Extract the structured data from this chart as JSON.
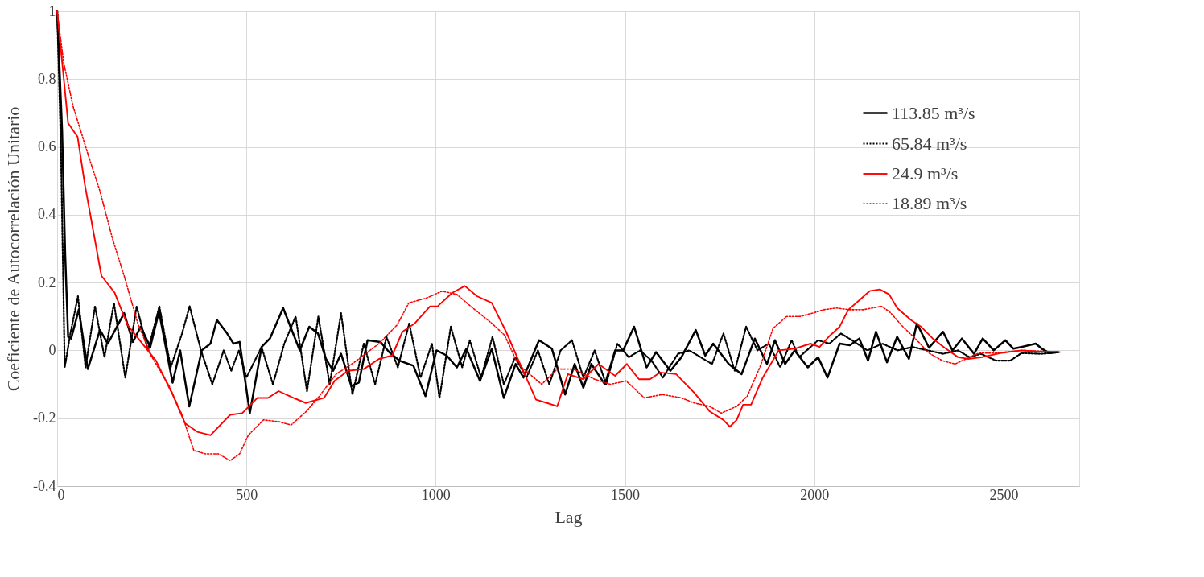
{
  "chart_data": {
    "type": "line",
    "xlabel": "Lag",
    "ylabel": "Coeficiente de Autocorrelación Unitario",
    "xlim": [
      0,
      2700
    ],
    "xticks": [
      0,
      500,
      1000,
      1500,
      2000,
      2500
    ],
    "ylim": [
      -0.4,
      1
    ],
    "yticks": [
      -0.4,
      -0.2,
      0,
      0.2,
      0.4,
      0.6,
      0.8,
      1
    ],
    "grid": true,
    "legend": "top right",
    "marker": "none",
    "series": [
      {
        "name": "113.85 m³/s",
        "color": "#000000",
        "line_style": "solid",
        "x": [
          0,
          13,
          21,
          29,
          37,
          57,
          81,
          113,
          134,
          177,
          200,
          221,
          246,
          269,
          305,
          325,
          349,
          382,
          405,
          422,
          449,
          466,
          482,
          509,
          540,
          562,
          597,
          618,
          641,
          666,
          689,
          710,
          729,
          750,
          777,
          797,
          820,
          854,
          877,
          904,
          941,
          973,
          1002,
          1029,
          1056,
          1081,
          1117,
          1148,
          1180,
          1211,
          1232,
          1273,
          1307,
          1342,
          1367,
          1390,
          1411,
          1447,
          1474,
          1495,
          1524,
          1557,
          1582,
          1620,
          1649,
          1687,
          1712,
          1733,
          1774,
          1808,
          1843,
          1875,
          1896,
          1923,
          1948,
          1983,
          2010,
          2035,
          2067,
          2094,
          2119,
          2142,
          2163,
          2192,
          2219,
          2250,
          2271,
          2303,
          2340,
          2365,
          2390,
          2422,
          2445,
          2474,
          2505,
          2526,
          2547,
          2585,
          2601,
          2622,
          2643
        ],
        "values": [
          1,
          0.65,
          0.29,
          0.04,
          0.035,
          0.12,
          -0.055,
          0.06,
          0.02,
          0.11,
          0.025,
          0.07,
          0.01,
          0.115,
          -0.095,
          0.0,
          -0.165,
          0.0,
          0.02,
          0.09,
          0.05,
          0.02,
          0.025,
          -0.185,
          0.01,
          0.035,
          0.125,
          0.065,
          0.0,
          0.07,
          0.05,
          -0.025,
          -0.06,
          -0.01,
          -0.105,
          -0.095,
          0.03,
          0.025,
          -0.005,
          -0.03,
          -0.045,
          -0.135,
          0.0,
          -0.015,
          -0.05,
          0.005,
          -0.09,
          0.005,
          -0.14,
          -0.04,
          -0.08,
          0.03,
          0.005,
          -0.13,
          -0.04,
          -0.11,
          -0.04,
          -0.1,
          0.0,
          0.0,
          0.07,
          -0.05,
          -0.005,
          -0.06,
          -0.02,
          0.06,
          -0.015,
          0.02,
          -0.04,
          -0.07,
          0.035,
          -0.04,
          0.03,
          -0.04,
          0.0,
          -0.05,
          -0.02,
          -0.08,
          0.02,
          0.015,
          0.035,
          -0.03,
          0.055,
          -0.035,
          0.04,
          -0.025,
          0.08,
          0.008,
          0.055,
          0.0,
          0.035,
          -0.01,
          0.035,
          0.0,
          0.03,
          0.005,
          0.01,
          0.02,
          0.005,
          -0.008,
          -0.005
        ]
      },
      {
        "name": "65.84  m³/s",
        "color": "#000000",
        "line_style": "dotted",
        "x": [
          0,
          10,
          20,
          35,
          55,
          75,
          100,
          125,
          150,
          180,
          210,
          240,
          270,
          300,
          330,
          350,
          380,
          410,
          440,
          460,
          480,
          500,
          540,
          570,
          600,
          630,
          660,
          690,
          720,
          750,
          780,
          810,
          840,
          870,
          900,
          930,
          960,
          990,
          1010,
          1040,
          1070,
          1090,
          1120,
          1150,
          1180,
          1210,
          1240,
          1270,
          1300,
          1330,
          1360,
          1390,
          1420,
          1450,
          1480,
          1510,
          1540,
          1570,
          1600,
          1640,
          1670,
          1700,
          1730,
          1760,
          1790,
          1820,
          1850,
          1880,
          1910,
          1940,
          1960,
          1980,
          2010,
          2040,
          2070,
          2100,
          2140,
          2180,
          2220,
          2260,
          2300,
          2340,
          2380,
          2410,
          2440,
          2480,
          2518,
          2547,
          2600,
          2650
        ],
        "values": [
          1,
          0.6,
          -0.05,
          0.05,
          0.16,
          -0.05,
          0.13,
          -0.02,
          0.14,
          -0.08,
          0.13,
          0.0,
          0.13,
          -0.05,
          0.05,
          0.13,
          0.0,
          -0.1,
          0.0,
          -0.06,
          0.0,
          -0.08,
          0.01,
          -0.1,
          0.02,
          0.1,
          -0.12,
          0.1,
          -0.1,
          0.11,
          -0.13,
          0.02,
          -0.1,
          0.04,
          -0.05,
          0.08,
          -0.08,
          0.02,
          -0.14,
          0.07,
          -0.05,
          0.03,
          -0.08,
          0.04,
          -0.1,
          -0.02,
          -0.08,
          0.0,
          -0.1,
          0.0,
          0.03,
          -0.08,
          0.0,
          -0.1,
          0.02,
          -0.02,
          0.0,
          -0.03,
          -0.08,
          -0.01,
          0.0,
          -0.02,
          -0.04,
          0.05,
          -0.06,
          0.07,
          0.0,
          0.02,
          -0.05,
          0.03,
          -0.02,
          0.0,
          0.03,
          0.02,
          0.05,
          0.03,
          0.0,
          0.02,
          0.0,
          0.01,
          0.0,
          -0.01,
          0.0,
          -0.02,
          -0.01,
          -0.03,
          -0.03,
          -0.008,
          -0.01,
          -0.005
        ]
      },
      {
        "name": "24.9  m³/s",
        "color": "#ff0000",
        "line_style": "solid",
        "x": [
          0,
          29,
          54,
          73,
          117,
          152,
          186,
          261,
          305,
          338,
          370,
          405,
          457,
          489,
          529,
          557,
          585,
          624,
          657,
          705,
          733,
          768,
          810,
          850,
          885,
          912,
          945,
          985,
          1005,
          1044,
          1077,
          1109,
          1148,
          1186,
          1217,
          1265,
          1294,
          1321,
          1349,
          1390,
          1430,
          1474,
          1505,
          1537,
          1566,
          1593,
          1635,
          1683,
          1724,
          1760,
          1777,
          1795,
          1812,
          1833,
          1864,
          1906,
          1948,
          1990,
          2014,
          2038,
          2067,
          2090,
          2121,
          2146,
          2173,
          2198,
          2219,
          2255,
          2282,
          2313,
          2344,
          2380,
          2407,
          2443,
          2491,
          2547,
          2601,
          2641
        ],
        "values": [
          1,
          0.67,
          0.63,
          0.49,
          0.22,
          0.17,
          0.075,
          -0.03,
          -0.13,
          -0.215,
          -0.24,
          -0.25,
          -0.19,
          -0.185,
          -0.14,
          -0.14,
          -0.12,
          -0.14,
          -0.155,
          -0.14,
          -0.09,
          -0.06,
          -0.055,
          -0.025,
          -0.015,
          0.055,
          0.08,
          0.13,
          0.13,
          0.17,
          0.19,
          0.16,
          0.14,
          0.055,
          -0.025,
          -0.145,
          -0.155,
          -0.165,
          -0.07,
          -0.085,
          -0.04,
          -0.075,
          -0.04,
          -0.085,
          -0.085,
          -0.065,
          -0.07,
          -0.125,
          -0.18,
          -0.205,
          -0.225,
          -0.205,
          -0.16,
          -0.16,
          -0.08,
          0.0,
          0.005,
          0.02,
          0.01,
          0.04,
          0.07,
          0.12,
          0.15,
          0.175,
          0.18,
          0.165,
          0.125,
          0.09,
          0.07,
          0.035,
          0.008,
          -0.02,
          -0.025,
          -0.02,
          -0.008,
          0.0,
          -0.004,
          -0.004
        ]
      },
      {
        "name": "18.89  m³/s",
        "color": "#ff0000",
        "line_style": "dotted",
        "x": [
          0,
          17,
          42,
          81,
          113,
          146,
          177,
          213,
          248,
          296,
          330,
          361,
          392,
          426,
          457,
          482,
          505,
          545,
          585,
          618,
          658,
          689,
          737,
          785,
          850,
          898,
          929,
          977,
          1017,
          1056,
          1098,
          1148,
          1182,
          1217,
          1280,
          1321,
          1363,
          1420,
          1461,
          1503,
          1551,
          1599,
          1649,
          1683,
          1724,
          1754,
          1795,
          1823,
          1858,
          1891,
          1927,
          1962,
          1996,
          2025,
          2058,
          2094,
          2129,
          2177,
          2198,
          2234,
          2267,
          2303,
          2338,
          2372,
          2401,
          2434,
          2476,
          2550,
          2650
        ],
        "values": [
          1,
          0.85,
          0.72,
          0.58,
          0.47,
          0.33,
          0.22,
          0.08,
          -0.015,
          -0.105,
          -0.19,
          -0.295,
          -0.305,
          -0.305,
          -0.325,
          -0.305,
          -0.25,
          -0.205,
          -0.21,
          -0.22,
          -0.18,
          -0.14,
          -0.07,
          -0.035,
          0.02,
          0.075,
          0.14,
          0.155,
          0.175,
          0.165,
          0.125,
          0.08,
          0.045,
          -0.04,
          -0.1,
          -0.055,
          -0.055,
          -0.085,
          -0.1,
          -0.09,
          -0.14,
          -0.13,
          -0.14,
          -0.155,
          -0.165,
          -0.185,
          -0.165,
          -0.135,
          -0.045,
          0.065,
          0.1,
          0.1,
          0.11,
          0.12,
          0.125,
          0.12,
          0.12,
          0.13,
          0.115,
          0.07,
          0.035,
          -0.008,
          -0.03,
          -0.04,
          -0.025,
          -0.008,
          -0.008,
          0.0,
          -0.005
        ]
      }
    ]
  }
}
